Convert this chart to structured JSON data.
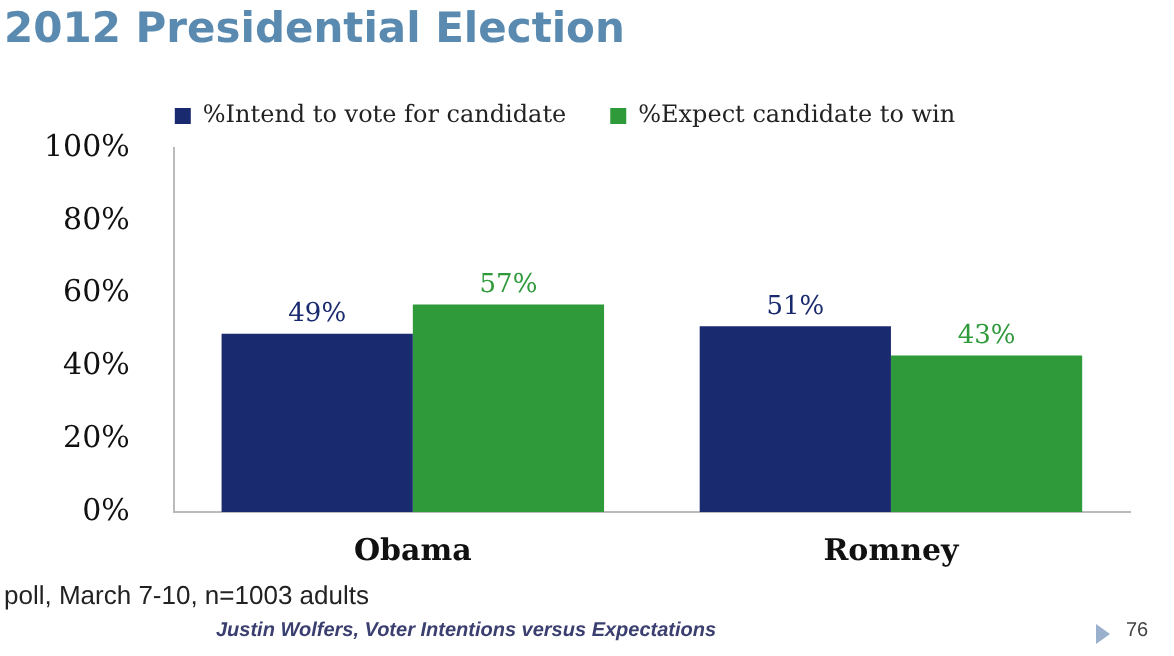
{
  "chart_data": {
    "type": "bar",
    "title": "2012 Presidential Election",
    "categories": [
      "Obama",
      "Romney"
    ],
    "series": [
      {
        "name": "%Intend to vote for candidate",
        "color": "#1a2a6e",
        "values": [
          49,
          51
        ],
        "value_labels": [
          "49%",
          "51%"
        ]
      },
      {
        "name": "%Expect candidate to win",
        "color": "#2e9a3a",
        "values": [
          57,
          43
        ],
        "value_labels": [
          "57%",
          "43%"
        ]
      }
    ],
    "ylim": [
      0,
      100
    ],
    "yticks": [
      {
        "value": 0,
        "label": "0%"
      },
      {
        "value": 20,
        "label": "20%"
      },
      {
        "value": 40,
        "label": "40%"
      },
      {
        "value": 60,
        "label": "60%"
      },
      {
        "value": 80,
        "label": "80%"
      },
      {
        "value": 100,
        "label": "100%"
      }
    ],
    "grid": false,
    "legend": "top",
    "annotations": [
      "poll, March 7-10, n=1003 adults",
      "Justin Wolfers, Voter Intentions versus Expectations",
      "76"
    ]
  }
}
